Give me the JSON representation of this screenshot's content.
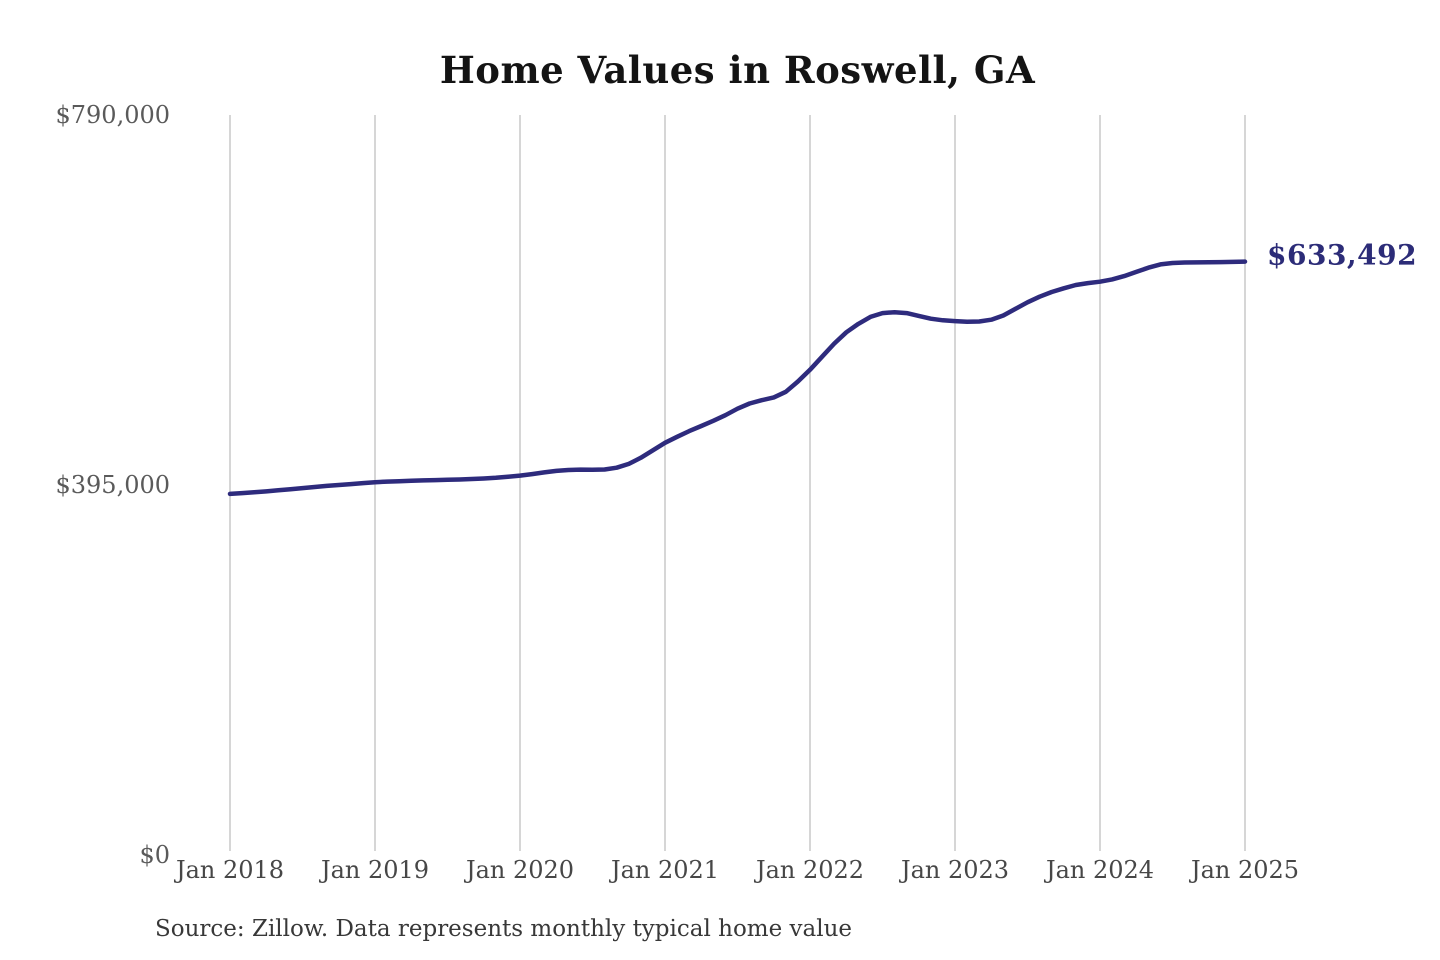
{
  "title": "Home Values in Roswell, GA",
  "source_note": "Source: Zillow. Data represents monthly typical home value",
  "end_label": "$633,492",
  "colors": {
    "line": "#2e2b7d",
    "end_label": "#2c2c78",
    "grid": "#c9c9c9",
    "title": "#141414",
    "y_axis_text": "#5a5a5a",
    "x_axis_text": "#474747",
    "source_text": "#383838",
    "background": "#ffffff"
  },
  "chart_data": {
    "type": "line",
    "title": "Home Values in Roswell, GA",
    "xlabel": "",
    "ylabel": "",
    "x_unit": "month",
    "x_start": "Jan 2018",
    "x_end": "Jan 2025",
    "x_tick_labels": [
      "Jan 2018",
      "Jan 2019",
      "Jan 2020",
      "Jan 2021",
      "Jan 2022",
      "Jan 2023",
      "Jan 2024",
      "Jan 2025"
    ],
    "y_ticks": [
      {
        "value": 0,
        "label": "$0"
      },
      {
        "value": 395000,
        "label": "$395,000"
      },
      {
        "value": 790000,
        "label": "$790,000"
      }
    ],
    "ylim": [
      0,
      790000
    ],
    "grid": "vertical-only",
    "legend": "none",
    "end_value": 633492,
    "end_value_label": "$633,492",
    "series": [
      {
        "name": "Monthly typical home value",
        "values": [
          385500,
          386300,
          387200,
          388200,
          389300,
          390500,
          391700,
          392900,
          394000,
          395000,
          396000,
          397000,
          398000,
          398600,
          399100,
          399500,
          399900,
          400200,
          400500,
          400900,
          401400,
          401900,
          402700,
          403800,
          405000,
          406600,
          408400,
          410000,
          411000,
          411400,
          411300,
          411600,
          413500,
          417500,
          424000,
          432000,
          440000,
          446500,
          452500,
          458000,
          463500,
          469500,
          476500,
          482000,
          485500,
          488500,
          494500,
          505500,
          518000,
          532000,
          546000,
          558000,
          567000,
          574500,
          578500,
          579500,
          578500,
          575500,
          572500,
          570800,
          570000,
          569300,
          569600,
          571500,
          576000,
          583000,
          590000,
          596000,
          601000,
          605000,
          608500,
          610500,
          612000,
          614500,
          618000,
          622500,
          627000,
          630500,
          632000,
          632500,
          632600,
          632800,
          633000,
          633200,
          633492
        ]
      }
    ]
  }
}
